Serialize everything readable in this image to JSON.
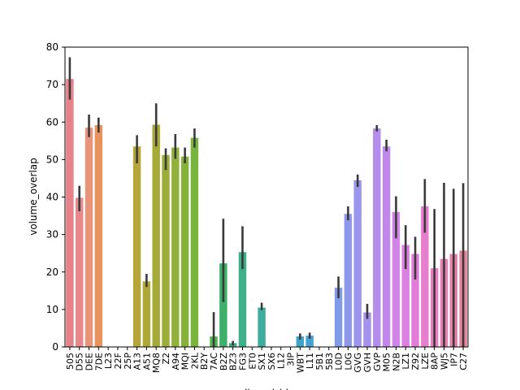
{
  "chart_data": {
    "type": "bar",
    "title": "",
    "xlabel": "ligand_id",
    "ylabel": "volume_overlap",
    "ylim": [
      0,
      80
    ],
    "yticks": [
      0,
      10,
      20,
      30,
      40,
      50,
      60,
      70,
      80
    ],
    "grid": false,
    "categories": [
      "505",
      "D55",
      "DEE",
      "7DE",
      "L23",
      "22F",
      "25P",
      "A13",
      "A51",
      "MQ8",
      "Z2",
      "A94",
      "MQI",
      "2KL",
      "B2Y",
      "7AC",
      "B2Z",
      "BZ3",
      "FG3",
      "ET0",
      "SX1",
      "SX6",
      "L12",
      "3IP",
      "WBT",
      "L11",
      "5B1",
      "5B3",
      "L0D",
      "L0G",
      "GVG",
      "GVH",
      "GVP",
      "M05",
      "N2B",
      "LZ1",
      "Z92",
      "LZE",
      "8AP",
      "WJ5",
      "IP7",
      "C27"
    ],
    "values": [
      71.5,
      39.8,
      58.5,
      59.2,
      0,
      0,
      0,
      53.5,
      17.5,
      59.3,
      51.2,
      53.2,
      50.8,
      55.8,
      0,
      2.8,
      22.3,
      1.0,
      25.3,
      0,
      10.5,
      0,
      0,
      0,
      2.8,
      3.0,
      0,
      0,
      15.8,
      35.5,
      44.5,
      9.2,
      58.3,
      53.5,
      36.0,
      27.2,
      24.8,
      37.5,
      21.0,
      23.5,
      24.8,
      25.7
    ],
    "error_low": [
      66.0,
      36.2,
      56.0,
      57.2,
      0,
      0,
      0,
      49.0,
      16.0,
      53.5,
      47.2,
      50.2,
      49.0,
      53.2,
      0,
      0,
      12.0,
      0.4,
      20.8,
      0,
      9.8,
      0,
      0,
      0,
      2.0,
      2.2,
      0,
      0,
      13.0,
      33.8,
      42.7,
      7.5,
      57.5,
      52.2,
      29.0,
      20.8,
      18.0,
      30.5,
      0,
      0,
      0,
      0
    ],
    "error_high": [
      77.3,
      43.0,
      62.0,
      61.2,
      0,
      0,
      0,
      56.5,
      19.5,
      65.0,
      53.0,
      56.8,
      53.2,
      58.3,
      0,
      9.3,
      34.2,
      1.6,
      32.2,
      0,
      11.8,
      0,
      0,
      0,
      3.6,
      3.8,
      0,
      0,
      18.8,
      37.5,
      46.0,
      11.5,
      59.2,
      55.3,
      40.2,
      32.5,
      29.4,
      44.8,
      36.8,
      43.8,
      42.2,
      43.7
    ],
    "colors": [
      "#e8828a",
      "#e8888a",
      "#e99478",
      "#e8935e",
      "#d99b45",
      "#cfa03f",
      "#c6a43c",
      "#b6a639",
      "#aea837",
      "#a5ab36",
      "#9cae37",
      "#92b13a",
      "#86b23a",
      "#79b53c",
      "#64b744",
      "#4fb652",
      "#3eb06b",
      "#3fb07d",
      "#3eaf88",
      "#3dae93",
      "#3dad9d",
      "#3cabaa",
      "#3eaab5",
      "#3ea7bd",
      "#3fa4c8",
      "#45a2d2",
      "#58a0db",
      "#6a9de3",
      "#7f9be8",
      "#8d98ea",
      "#9b95ec",
      "#a592ec",
      "#b48ceb",
      "#c287ea",
      "#d084e8",
      "#dc81e2",
      "#e27cd8",
      "#e77dcd",
      "#e87cbe",
      "#e87db3",
      "#e87ea8",
      "#e8829c"
    ]
  }
}
